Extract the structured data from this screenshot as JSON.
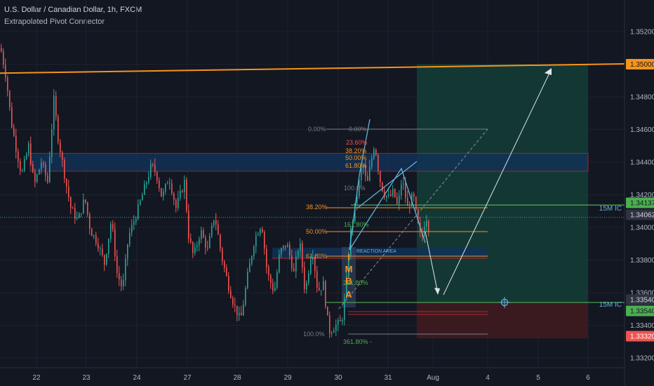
{
  "header": {
    "symbol_title": "U.S. Dollar / Canadian Dollar, 1h, FXCM",
    "indicator_name": "Extrapolated Pivot Connector"
  },
  "colors": {
    "background": "#131722",
    "bull": "#26a69a",
    "bear": "#ef5350",
    "grid": "#1e222d",
    "orange": "#f7931a",
    "green_line": "#4caf50",
    "target_zone": "#133a36",
    "stop_zone": "#3d1a20",
    "supply_zone": "#123258",
    "price_tag": "#2f3241"
  },
  "chart_data": {
    "type": "candlestick",
    "symbol": "USDCAD",
    "timeframe": "1h",
    "x_tick_labels": [
      "22",
      "23",
      "24",
      "27",
      "28",
      "29",
      "30",
      "31",
      "Aug",
      "4",
      "5",
      "6"
    ],
    "y_axis": {
      "ticks": [
        "1.35200",
        "1.35000",
        "1.34800",
        "1.34600",
        "1.34400",
        "1.34200",
        "1.34000",
        "1.33800",
        "1.33600",
        "1.33400",
        "1.33200"
      ],
      "ylim": [
        1.3316,
        1.3534
      ]
    },
    "price_tags": [
      {
        "value": "1.35000",
        "style": "orange"
      },
      {
        "value": "1.34137",
        "style": "green"
      },
      {
        "value": "1.34062",
        "style": "neutral"
      },
      {
        "value": "1.33540",
        "style": "neutral"
      },
      {
        "value": "1.33540",
        "style": "green"
      },
      {
        "value": "1.33320",
        "style": "red"
      }
    ],
    "right_labels": [
      "15M IC",
      "15M IC"
    ],
    "fib_levels": [
      {
        "label": "0.00%",
        "color": "gray"
      },
      {
        "label": "0.00%",
        "color": "gray"
      },
      {
        "label": "23.60%",
        "color": "red"
      },
      {
        "label": "38.20%",
        "color": "orange"
      },
      {
        "label": "50.00%",
        "color": "orange"
      },
      {
        "label": "61.80%",
        "color": "orange"
      },
      {
        "label": "100.0%",
        "color": "gray"
      },
      {
        "label": "38.20%",
        "color": "orange"
      },
      {
        "label": "161.80%",
        "color": "green"
      },
      {
        "label": "50.00%",
        "color": "orange"
      },
      {
        "label": "61.80%",
        "color": "orange"
      },
      {
        "label": "261.80%",
        "color": "green"
      },
      {
        "label": "100.0%",
        "color": "gray"
      },
      {
        "label": "361.80% -",
        "color": "green"
      }
    ],
    "annotations": {
      "reaction_area": "REACTION AREA",
      "imba_letters": [
        "I",
        "M",
        "B",
        "A"
      ]
    },
    "zones": {
      "target_top": 1.35,
      "entry": 1.3354,
      "stop": 1.3332,
      "supply_zone": [
        1.34344,
        1.34454
      ],
      "reaction_zone": [
        1.33811,
        1.33875
      ]
    },
    "trendline": {
      "start": 1.34945,
      "end": 1.35002
    },
    "levels": {
      "current": 1.34062,
      "resistance": 1.34137
    },
    "candles": []
  }
}
